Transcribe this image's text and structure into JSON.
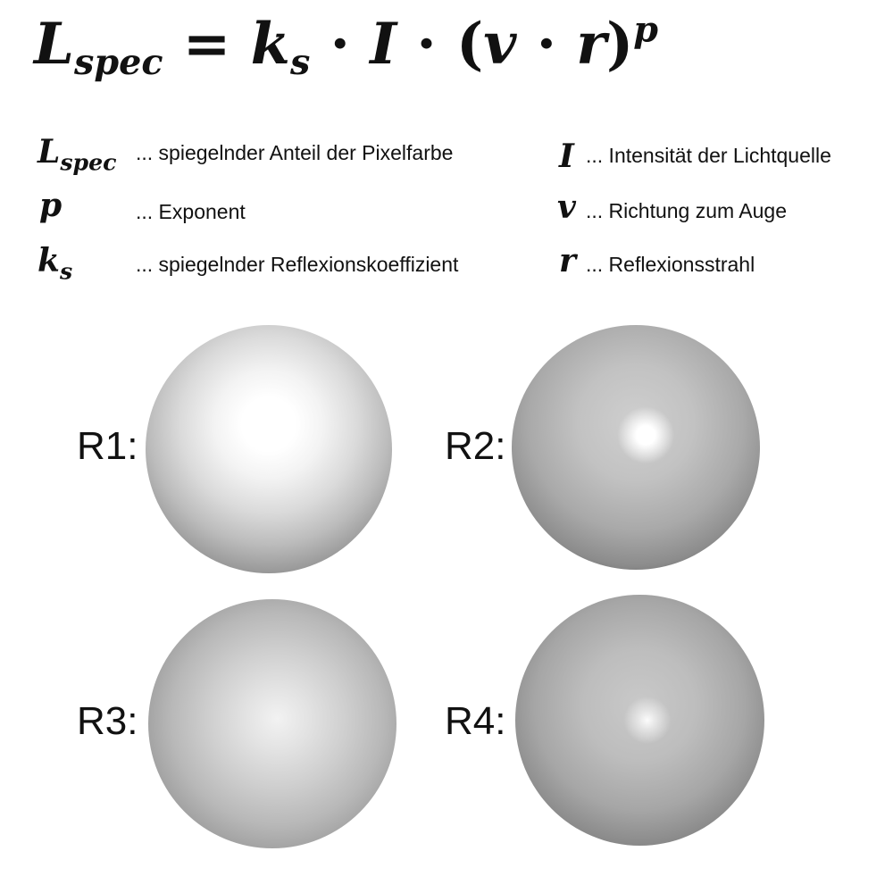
{
  "formula": {
    "lhs_base": "L",
    "lhs_sub": "spec",
    "eq": " = ",
    "k": "k",
    "k_sub": "s",
    "dot1": " · ",
    "I": "I",
    "dot2": " · (",
    "v": "v",
    "dot3": " · ",
    "r": "r",
    "close": ")",
    "exp": "p"
  },
  "legend": {
    "lspec": {
      "base": "L",
      "sub": "spec",
      "text": "... spiegelnder Anteil der Pixelfarbe"
    },
    "p": {
      "symbol": "p",
      "text": "... Exponent"
    },
    "ks": {
      "base": "k",
      "sub": "s",
      "text": "... spiegelnder Reflexionskoeffizient"
    },
    "I": {
      "symbol": "I",
      "text": "... Intensität der Lichtquelle"
    },
    "v": {
      "symbol": "v",
      "text": "... Richtung zum Auge"
    },
    "r": {
      "symbol": "r",
      "text": "... Reflexionsstrahl"
    }
  },
  "renders": [
    {
      "label": "R1:"
    },
    {
      "label": "R2:"
    },
    {
      "label": "R3:"
    },
    {
      "label": "R4:"
    }
  ],
  "colors": {
    "text": "#111111",
    "background": "#ffffff"
  }
}
